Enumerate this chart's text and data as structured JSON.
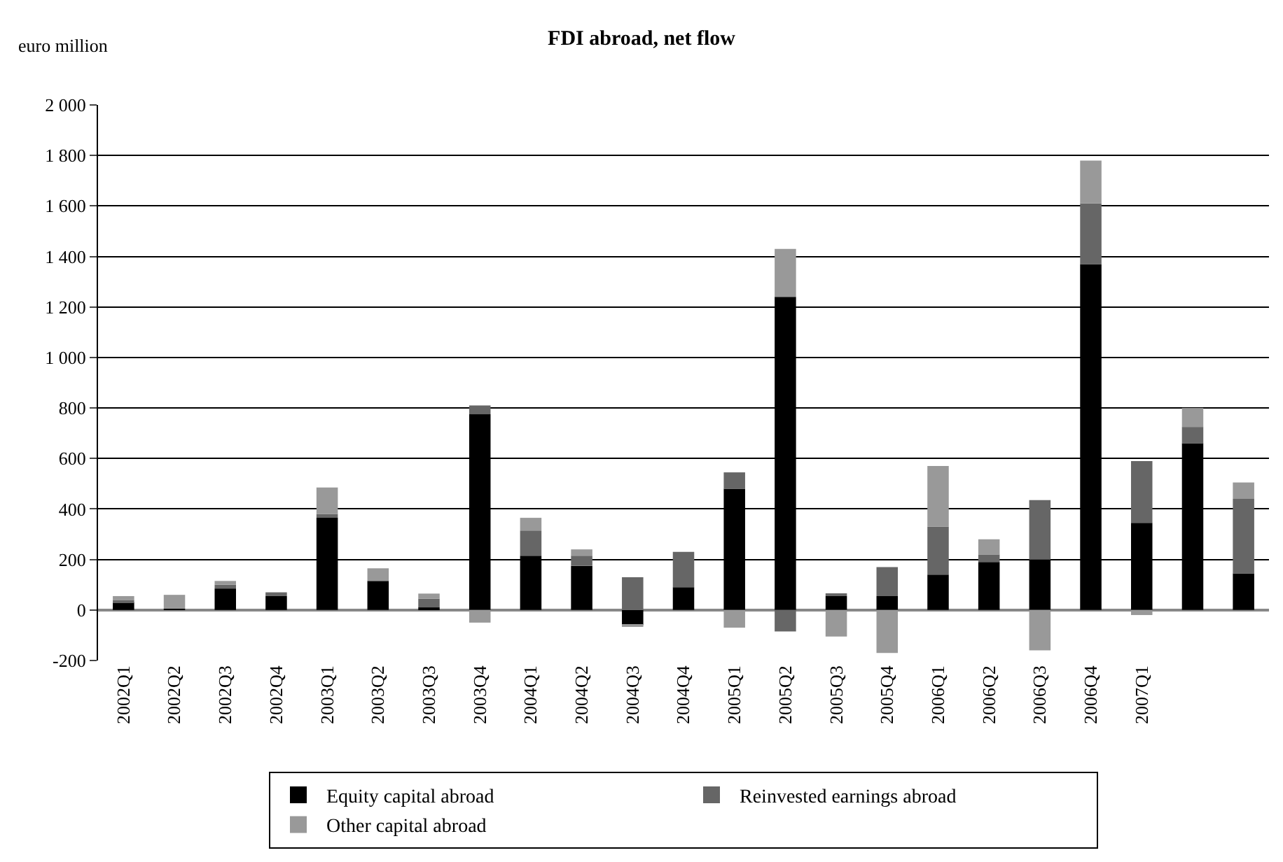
{
  "chart_data": {
    "type": "bar",
    "title": "FDI abroad, net flow",
    "annotations": [
      "euro million"
    ],
    "categories": [
      "2002Q1",
      "2002Q2",
      "2002Q3",
      "2002Q4",
      "2003Q1",
      "2003Q2",
      "2003Q3",
      "2003Q4",
      "2004Q1",
      "2004Q2",
      "2004Q3",
      "2004Q4",
      "2005Q1",
      "2005Q2",
      "2005Q3",
      "2005Q4",
      "2006Q1",
      "2006Q2",
      "2006Q3",
      "2006Q4",
      "2007Q1",
      null,
      null
    ],
    "stacked": true,
    "series": [
      {
        "name": "Equity capital abroad",
        "color": "#000000",
        "values": [
          30,
          5,
          85,
          55,
          365,
          115,
          10,
          775,
          215,
          175,
          -60,
          90,
          480,
          1240,
          55,
          55,
          140,
          190,
          200,
          1370,
          345,
          660,
          145
        ]
      },
      {
        "name": "Reinvested earnings abroad",
        "color": "#666666",
        "values": [
          10,
          0,
          15,
          15,
          15,
          0,
          35,
          35,
          100,
          40,
          130,
          140,
          65,
          -85,
          10,
          115,
          190,
          30,
          235,
          240,
          245,
          65,
          295
        ]
      },
      {
        "name": "Other capital abroad",
        "color": "#999999",
        "values": [
          15,
          55,
          15,
          0,
          105,
          50,
          20,
          -50,
          50,
          25,
          -5,
          0,
          -70,
          190,
          -105,
          -170,
          240,
          60,
          -160,
          170,
          -20,
          75,
          65
        ]
      }
    ],
    "ylim": [
      -200,
      2000
    ],
    "yticks": [
      -200,
      0,
      200,
      400,
      600,
      800,
      {
        "value": 1000,
        "label": "1 000"
      },
      {
        "value": 1200,
        "label": "1 200"
      },
      {
        "value": 1400,
        "label": "1 400"
      },
      {
        "value": 1600,
        "label": "1 600"
      },
      {
        "value": 1800,
        "label": "1 800"
      },
      {
        "value": 2000,
        "label": "2 000"
      }
    ],
    "grid": "y",
    "legend": "bottom"
  }
}
